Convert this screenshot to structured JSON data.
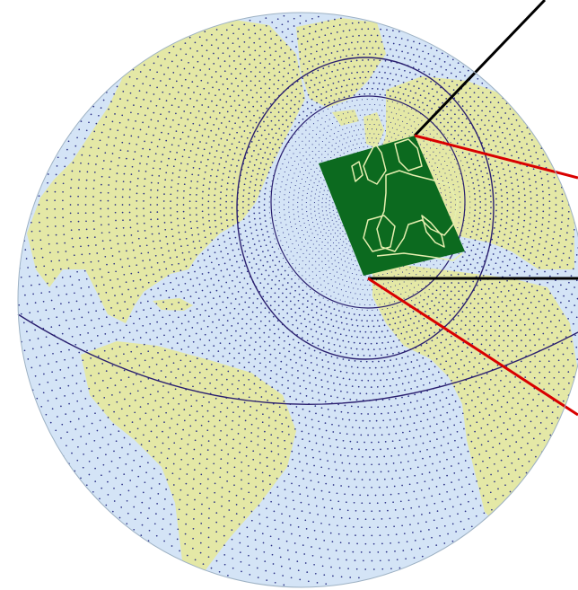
{
  "figure": {
    "kind": "globe-grid",
    "projection": "orthographic",
    "colors": {
      "background": "#ffffff",
      "ocean": "#d4e4f6",
      "land": "#e4e8a6",
      "grid_points": "#2a2f86",
      "rings": "#2a1f6f",
      "regional_domain": "#0c6a1f",
      "domain_coastlines": "#e6efb0",
      "globe_outline": "#9eb2c4",
      "pointer_dark": "#000000",
      "pointer_red": "#d90000"
    },
    "elements": [
      "stretched-global-grid-points",
      "high-resolution-ring-inner",
      "high-resolution-ring-outer",
      "great-circle",
      "regional-domain-europe",
      "callout-lines"
    ]
  }
}
